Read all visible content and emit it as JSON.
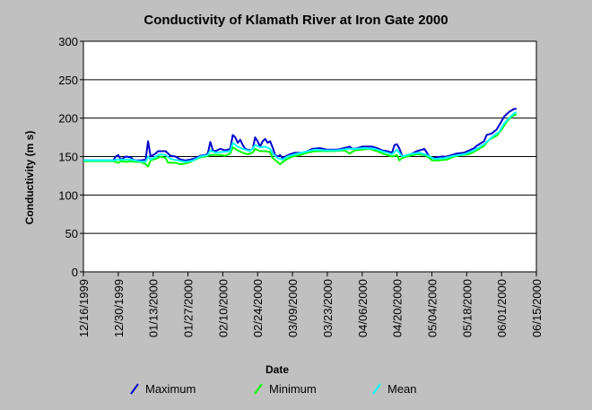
{
  "chart_data": {
    "type": "line",
    "title": "Conductivity of Klamath River at Iron Gate 2000",
    "xlabel": "Date",
    "ylabel": "Conductivity (m s)",
    "ylim": [
      0,
      300
    ],
    "yticks": [
      0,
      50,
      100,
      150,
      200,
      250,
      300
    ],
    "xlim": [
      "1999-12-16",
      "2000-06-15"
    ],
    "xticks": [
      "12/16/1999",
      "12/30/1999",
      "01/13/2000",
      "01/27/2000",
      "02/10/2000",
      "02/24/2000",
      "03/09/2000",
      "03/23/2000",
      "04/06/2000",
      "04/20/2000",
      "05/04/2000",
      "05/18/2000",
      "06/01/2000",
      "06/15/2000"
    ],
    "grid": true,
    "legend_position": "bottom",
    "colors": {
      "Maximum": "#0000cc",
      "Minimum": "#00ff00",
      "Mean": "#00ffff"
    },
    "series": [
      {
        "name": "Maximum",
        "points": [
          [
            "1999-12-16",
            145
          ],
          [
            "1999-12-28",
            145
          ],
          [
            "1999-12-29",
            150
          ],
          [
            "1999-12-30",
            152
          ],
          [
            "1999-12-31",
            146
          ],
          [
            "2000-01-01",
            148
          ],
          [
            "2000-01-02",
            150
          ],
          [
            "2000-01-04",
            149
          ],
          [
            "2000-01-05",
            146
          ],
          [
            "2000-01-06",
            145
          ],
          [
            "2000-01-08",
            145
          ],
          [
            "2000-01-10",
            146
          ],
          [
            "2000-01-11",
            170
          ],
          [
            "2000-01-12",
            150
          ],
          [
            "2000-01-14",
            154
          ],
          [
            "2000-01-15",
            157
          ],
          [
            "2000-01-18",
            157
          ],
          [
            "2000-01-20",
            151
          ],
          [
            "2000-01-22",
            150
          ],
          [
            "2000-01-24",
            146
          ],
          [
            "2000-01-26",
            145
          ],
          [
            "2000-01-28",
            146
          ],
          [
            "2000-01-30",
            148
          ],
          [
            "2000-02-01",
            151
          ],
          [
            "2000-02-03",
            152
          ],
          [
            "2000-02-04",
            154
          ],
          [
            "2000-02-05",
            169
          ],
          [
            "2000-02-06",
            158
          ],
          [
            "2000-02-07",
            157
          ],
          [
            "2000-02-09",
            160
          ],
          [
            "2000-02-11",
            158
          ],
          [
            "2000-02-13",
            160
          ],
          [
            "2000-02-14",
            178
          ],
          [
            "2000-02-15",
            175
          ],
          [
            "2000-02-16",
            168
          ],
          [
            "2000-02-17",
            172
          ],
          [
            "2000-02-18",
            165
          ],
          [
            "2000-02-19",
            160
          ],
          [
            "2000-02-21",
            158
          ],
          [
            "2000-02-22",
            160
          ],
          [
            "2000-02-23",
            175
          ],
          [
            "2000-02-24",
            170
          ],
          [
            "2000-02-25",
            163
          ],
          [
            "2000-02-26",
            170
          ],
          [
            "2000-02-27",
            173
          ],
          [
            "2000-02-28",
            168
          ],
          [
            "2000-02-29",
            170
          ],
          [
            "2000-03-01",
            162
          ],
          [
            "2000-03-02",
            152
          ],
          [
            "2000-03-03",
            150
          ],
          [
            "2000-03-04",
            152
          ],
          [
            "2000-03-05",
            148
          ],
          [
            "2000-03-06",
            150
          ],
          [
            "2000-03-08",
            153
          ],
          [
            "2000-03-10",
            155
          ],
          [
            "2000-03-13",
            155
          ],
          [
            "2000-03-15",
            157
          ],
          [
            "2000-03-17",
            160
          ],
          [
            "2000-03-20",
            161
          ],
          [
            "2000-03-23",
            159
          ],
          [
            "2000-03-27",
            159
          ],
          [
            "2000-03-31",
            162
          ],
          [
            "2000-04-01",
            163
          ],
          [
            "2000-04-02",
            160
          ],
          [
            "2000-04-04",
            161
          ],
          [
            "2000-04-06",
            163
          ],
          [
            "2000-04-08",
            163
          ],
          [
            "2000-04-10",
            163
          ],
          [
            "2000-04-12",
            161
          ],
          [
            "2000-04-14",
            158
          ],
          [
            "2000-04-16",
            157
          ],
          [
            "2000-04-18",
            155
          ],
          [
            "2000-04-19",
            165
          ],
          [
            "2000-04-20",
            166
          ],
          [
            "2000-04-21",
            160
          ],
          [
            "2000-04-22",
            151
          ],
          [
            "2000-04-24",
            150
          ],
          [
            "2000-04-26",
            154
          ],
          [
            "2000-04-28",
            157
          ],
          [
            "2000-04-30",
            159
          ],
          [
            "2000-05-01",
            160
          ],
          [
            "2000-05-02",
            155
          ],
          [
            "2000-05-03",
            150
          ],
          [
            "2000-05-04",
            148
          ],
          [
            "2000-05-06",
            149
          ],
          [
            "2000-05-08",
            150
          ],
          [
            "2000-05-10",
            150
          ],
          [
            "2000-05-12",
            152
          ],
          [
            "2000-05-14",
            154
          ],
          [
            "2000-05-17",
            155
          ],
          [
            "2000-05-19",
            158
          ],
          [
            "2000-05-21",
            161
          ],
          [
            "2000-05-22",
            164
          ],
          [
            "2000-05-24",
            168
          ],
          [
            "2000-05-25",
            170
          ],
          [
            "2000-05-26",
            178
          ],
          [
            "2000-05-28",
            180
          ],
          [
            "2000-05-30",
            185
          ],
          [
            "2000-06-01",
            196
          ],
          [
            "2000-06-02",
            202
          ],
          [
            "2000-06-03",
            205
          ],
          [
            "2000-06-04",
            208
          ],
          [
            "2000-06-05",
            210
          ],
          [
            "2000-06-06",
            212
          ],
          [
            "2000-06-07",
            212
          ]
        ]
      },
      {
        "name": "Minimum",
        "points": [
          [
            "1999-12-16",
            144
          ],
          [
            "1999-12-28",
            144
          ],
          [
            "1999-12-30",
            142
          ],
          [
            "1999-12-31",
            144
          ],
          [
            "2000-01-02",
            143
          ],
          [
            "2000-01-04",
            144
          ],
          [
            "2000-01-06",
            143
          ],
          [
            "2000-01-08",
            143
          ],
          [
            "2000-01-10",
            140
          ],
          [
            "2000-01-11",
            137
          ],
          [
            "2000-01-12",
            145
          ],
          [
            "2000-01-14",
            147
          ],
          [
            "2000-01-16",
            150
          ],
          [
            "2000-01-18",
            148
          ],
          [
            "2000-01-19",
            142
          ],
          [
            "2000-01-22",
            142
          ],
          [
            "2000-01-24",
            140
          ],
          [
            "2000-01-26",
            141
          ],
          [
            "2000-01-28",
            143
          ],
          [
            "2000-01-30",
            146
          ],
          [
            "2000-02-01",
            149
          ],
          [
            "2000-02-03",
            150
          ],
          [
            "2000-02-05",
            152
          ],
          [
            "2000-02-07",
            152
          ],
          [
            "2000-02-09",
            152
          ],
          [
            "2000-02-11",
            151
          ],
          [
            "2000-02-13",
            154
          ],
          [
            "2000-02-14",
            162
          ],
          [
            "2000-02-16",
            158
          ],
          [
            "2000-02-18",
            155
          ],
          [
            "2000-02-20",
            153
          ],
          [
            "2000-02-22",
            155
          ],
          [
            "2000-02-23",
            160
          ],
          [
            "2000-02-25",
            157
          ],
          [
            "2000-02-27",
            157
          ],
          [
            "2000-02-29",
            156
          ],
          [
            "2000-03-01",
            148
          ],
          [
            "2000-03-03",
            143
          ],
          [
            "2000-03-04",
            140
          ],
          [
            "2000-03-05",
            143
          ],
          [
            "2000-03-07",
            147
          ],
          [
            "2000-03-09",
            150
          ],
          [
            "2000-03-12",
            152
          ],
          [
            "2000-03-15",
            155
          ],
          [
            "2000-03-18",
            157
          ],
          [
            "2000-03-22",
            157
          ],
          [
            "2000-03-26",
            157
          ],
          [
            "2000-03-30",
            158
          ],
          [
            "2000-04-01",
            154
          ],
          [
            "2000-04-03",
            158
          ],
          [
            "2000-04-06",
            159
          ],
          [
            "2000-04-09",
            160
          ],
          [
            "2000-04-12",
            157
          ],
          [
            "2000-04-15",
            153
          ],
          [
            "2000-04-18",
            150
          ],
          [
            "2000-04-20",
            152
          ],
          [
            "2000-04-21",
            145
          ],
          [
            "2000-04-22",
            148
          ],
          [
            "2000-04-25",
            151
          ],
          [
            "2000-04-28",
            153
          ],
          [
            "2000-05-01",
            152
          ],
          [
            "2000-05-03",
            148
          ],
          [
            "2000-05-04",
            145
          ],
          [
            "2000-05-07",
            145
          ],
          [
            "2000-05-10",
            146
          ],
          [
            "2000-05-13",
            150
          ],
          [
            "2000-05-16",
            152
          ],
          [
            "2000-05-19",
            153
          ],
          [
            "2000-05-22",
            158
          ],
          [
            "2000-05-25",
            164
          ],
          [
            "2000-05-27",
            172
          ],
          [
            "2000-05-30",
            177
          ],
          [
            "2000-06-01",
            185
          ],
          [
            "2000-06-03",
            195
          ],
          [
            "2000-06-05",
            202
          ],
          [
            "2000-06-07",
            205
          ]
        ]
      },
      {
        "name": "Mean",
        "points": [
          [
            "1999-12-16",
            145
          ],
          [
            "1999-12-28",
            145
          ],
          [
            "1999-12-30",
            146
          ],
          [
            "2000-01-01",
            146
          ],
          [
            "2000-01-04",
            146
          ],
          [
            "2000-01-07",
            144
          ],
          [
            "2000-01-10",
            143
          ],
          [
            "2000-01-11",
            150
          ],
          [
            "2000-01-12",
            146
          ],
          [
            "2000-01-14",
            150
          ],
          [
            "2000-01-16",
            153
          ],
          [
            "2000-01-18",
            152
          ],
          [
            "2000-01-20",
            147
          ],
          [
            "2000-01-23",
            145
          ],
          [
            "2000-01-26",
            143
          ],
          [
            "2000-01-29",
            145
          ],
          [
            "2000-02-01",
            150
          ],
          [
            "2000-02-04",
            152
          ],
          [
            "2000-02-05",
            158
          ],
          [
            "2000-02-07",
            155
          ],
          [
            "2000-02-10",
            156
          ],
          [
            "2000-02-13",
            157
          ],
          [
            "2000-02-14",
            168
          ],
          [
            "2000-02-16",
            163
          ],
          [
            "2000-02-18",
            160
          ],
          [
            "2000-02-21",
            157
          ],
          [
            "2000-02-23",
            165
          ],
          [
            "2000-02-25",
            162
          ],
          [
            "2000-02-27",
            163
          ],
          [
            "2000-02-29",
            160
          ],
          [
            "2000-03-01",
            154
          ],
          [
            "2000-03-03",
            148
          ],
          [
            "2000-03-05",
            146
          ],
          [
            "2000-03-07",
            150
          ],
          [
            "2000-03-10",
            153
          ],
          [
            "2000-03-14",
            156
          ],
          [
            "2000-03-18",
            159
          ],
          [
            "2000-03-22",
            158
          ],
          [
            "2000-03-27",
            158
          ],
          [
            "2000-03-31",
            160
          ],
          [
            "2000-04-03",
            160
          ],
          [
            "2000-04-07",
            161
          ],
          [
            "2000-04-11",
            160
          ],
          [
            "2000-04-15",
            156
          ],
          [
            "2000-04-18",
            153
          ],
          [
            "2000-04-20",
            159
          ],
          [
            "2000-04-22",
            150
          ],
          [
            "2000-04-25",
            153
          ],
          [
            "2000-04-29",
            155
          ],
          [
            "2000-05-02",
            152
          ],
          [
            "2000-05-05",
            147
          ],
          [
            "2000-05-09",
            148
          ],
          [
            "2000-05-13",
            151
          ],
          [
            "2000-05-17",
            153
          ],
          [
            "2000-05-21",
            158
          ],
          [
            "2000-05-25",
            166
          ],
          [
            "2000-05-28",
            175
          ],
          [
            "2000-05-31",
            182
          ],
          [
            "2000-06-02",
            193
          ],
          [
            "2000-06-04",
            200
          ],
          [
            "2000-06-06",
            206
          ],
          [
            "2000-06-07",
            208
          ]
        ]
      }
    ]
  }
}
